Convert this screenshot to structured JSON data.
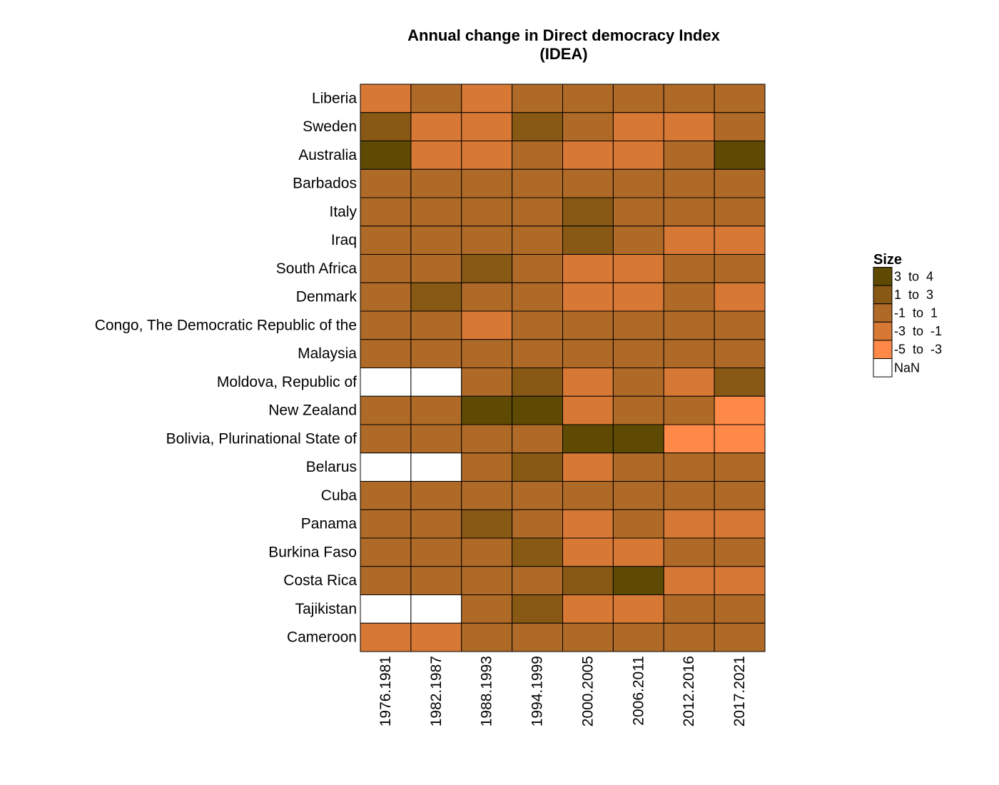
{
  "chart_data": {
    "type": "heatmap",
    "title": [
      "Annual change in Direct democracy Index",
      "(IDEA)"
    ],
    "rows": [
      "Liberia",
      "Sweden",
      "Australia",
      "Barbados",
      "Italy",
      "Iraq",
      "South Africa",
      "Denmark",
      "Congo, The Democratic Republic of the",
      "Malaysia",
      "Moldova, Republic of",
      "New Zealand",
      "Bolivia, Plurinational State of",
      "Belarus",
      "Cuba",
      "Panama",
      "Burkina Faso",
      "Costa Rica",
      "Tajikistan",
      "Cameroon"
    ],
    "columns": [
      "1976.1981",
      "1982.1987",
      "1988.1993",
      "1994.1999",
      "2000.2005",
      "2006.2011",
      "2012.2016",
      "2017.2021"
    ],
    "legend": {
      "title": "Size",
      "position": "right",
      "bins": [
        {
          "label": "3  to  4",
          "range": [
            3,
            4
          ],
          "color": "#5f4a04"
        },
        {
          "label": "1  to  3",
          "range": [
            1,
            3
          ],
          "color": "#875914"
        },
        {
          "label": "-1  to  1",
          "range": [
            -1,
            1
          ],
          "color": "#b06a27"
        },
        {
          "label": "-3  to  -1",
          "range": [
            -3,
            -1
          ],
          "color": "#d87835"
        },
        {
          "label": "-5  to  -3",
          "range": [
            -5,
            -3
          ],
          "color": "#ff8946"
        },
        {
          "label": "NaN",
          "range": null,
          "color": "#ffffff"
        }
      ]
    },
    "values": [
      [
        [
          -3,
          -1
        ],
        [
          -1,
          1
        ],
        [
          -3,
          -1
        ],
        [
          -1,
          1
        ],
        [
          -1,
          1
        ],
        [
          -1,
          1
        ],
        [
          -1,
          1
        ],
        [
          -1,
          1
        ]
      ],
      [
        [
          1,
          3
        ],
        [
          -3,
          -1
        ],
        [
          -3,
          -1
        ],
        [
          1,
          3
        ],
        [
          -1,
          1
        ],
        [
          -3,
          -1
        ],
        [
          -3,
          -1
        ],
        [
          -1,
          1
        ]
      ],
      [
        [
          3,
          4
        ],
        [
          -3,
          -1
        ],
        [
          -3,
          -1
        ],
        [
          -1,
          1
        ],
        [
          -3,
          -1
        ],
        [
          -3,
          -1
        ],
        [
          -1,
          1
        ],
        [
          3,
          4
        ]
      ],
      [
        [
          -1,
          1
        ],
        [
          -1,
          1
        ],
        [
          -1,
          1
        ],
        [
          -1,
          1
        ],
        [
          -1,
          1
        ],
        [
          -1,
          1
        ],
        [
          -1,
          1
        ],
        [
          -1,
          1
        ]
      ],
      [
        [
          -1,
          1
        ],
        [
          -1,
          1
        ],
        [
          -1,
          1
        ],
        [
          -1,
          1
        ],
        [
          1,
          3
        ],
        [
          -1,
          1
        ],
        [
          -1,
          1
        ],
        [
          -1,
          1
        ]
      ],
      [
        [
          -1,
          1
        ],
        [
          -1,
          1
        ],
        [
          -1,
          1
        ],
        [
          -1,
          1
        ],
        [
          1,
          3
        ],
        [
          -1,
          1
        ],
        [
          -3,
          -1
        ],
        [
          -3,
          -1
        ]
      ],
      [
        [
          -1,
          1
        ],
        [
          -1,
          1
        ],
        [
          1,
          3
        ],
        [
          -1,
          1
        ],
        [
          -3,
          -1
        ],
        [
          -3,
          -1
        ],
        [
          -1,
          1
        ],
        [
          -1,
          1
        ]
      ],
      [
        [
          -1,
          1
        ],
        [
          1,
          3
        ],
        [
          -1,
          1
        ],
        [
          -1,
          1
        ],
        [
          -3,
          -1
        ],
        [
          -3,
          -1
        ],
        [
          -1,
          1
        ],
        [
          -3,
          -1
        ]
      ],
      [
        [
          -1,
          1
        ],
        [
          -1,
          1
        ],
        [
          -3,
          -1
        ],
        [
          -1,
          1
        ],
        [
          -1,
          1
        ],
        [
          -1,
          1
        ],
        [
          -1,
          1
        ],
        [
          -1,
          1
        ]
      ],
      [
        [
          -1,
          1
        ],
        [
          -1,
          1
        ],
        [
          -1,
          1
        ],
        [
          -1,
          1
        ],
        [
          -1,
          1
        ],
        [
          -1,
          1
        ],
        [
          -1,
          1
        ],
        [
          -1,
          1
        ]
      ],
      [
        null,
        null,
        [
          -1,
          1
        ],
        [
          1,
          3
        ],
        [
          -3,
          -1
        ],
        [
          -1,
          1
        ],
        [
          -3,
          -1
        ],
        [
          1,
          3
        ]
      ],
      [
        [
          -1,
          1
        ],
        [
          -1,
          1
        ],
        [
          3,
          4
        ],
        [
          3,
          4
        ],
        [
          -3,
          -1
        ],
        [
          -1,
          1
        ],
        [
          -1,
          1
        ],
        [
          -5,
          -3
        ]
      ],
      [
        [
          -1,
          1
        ],
        [
          -1,
          1
        ],
        [
          -1,
          1
        ],
        [
          -1,
          1
        ],
        [
          3,
          4
        ],
        [
          3,
          4
        ],
        [
          -5,
          -3
        ],
        [
          -5,
          -3
        ]
      ],
      [
        null,
        null,
        [
          -1,
          1
        ],
        [
          1,
          3
        ],
        [
          -3,
          -1
        ],
        [
          -1,
          1
        ],
        [
          -1,
          1
        ],
        [
          -1,
          1
        ]
      ],
      [
        [
          -1,
          1
        ],
        [
          -1,
          1
        ],
        [
          -1,
          1
        ],
        [
          -1,
          1
        ],
        [
          -1,
          1
        ],
        [
          -1,
          1
        ],
        [
          -1,
          1
        ],
        [
          -1,
          1
        ]
      ],
      [
        [
          -1,
          1
        ],
        [
          -1,
          1
        ],
        [
          1,
          3
        ],
        [
          -1,
          1
        ],
        [
          -3,
          -1
        ],
        [
          -1,
          1
        ],
        [
          -3,
          -1
        ],
        [
          -3,
          -1
        ]
      ],
      [
        [
          -1,
          1
        ],
        [
          -1,
          1
        ],
        [
          -1,
          1
        ],
        [
          1,
          3
        ],
        [
          -3,
          -1
        ],
        [
          -3,
          -1
        ],
        [
          -1,
          1
        ],
        [
          -1,
          1
        ]
      ],
      [
        [
          -1,
          1
        ],
        [
          -1,
          1
        ],
        [
          -1,
          1
        ],
        [
          -1,
          1
        ],
        [
          1,
          3
        ],
        [
          3,
          4
        ],
        [
          -3,
          -1
        ],
        [
          -3,
          -1
        ]
      ],
      [
        null,
        null,
        [
          -1,
          1
        ],
        [
          1,
          3
        ],
        [
          -3,
          -1
        ],
        [
          -3,
          -1
        ],
        [
          -1,
          1
        ],
        [
          -1,
          1
        ]
      ],
      [
        [
          -3,
          -1
        ],
        [
          -3,
          -1
        ],
        [
          -1,
          1
        ],
        [
          -1,
          1
        ],
        [
          -1,
          1
        ],
        [
          -1,
          1
        ],
        [
          -1,
          1
        ],
        [
          -1,
          1
        ]
      ]
    ]
  }
}
